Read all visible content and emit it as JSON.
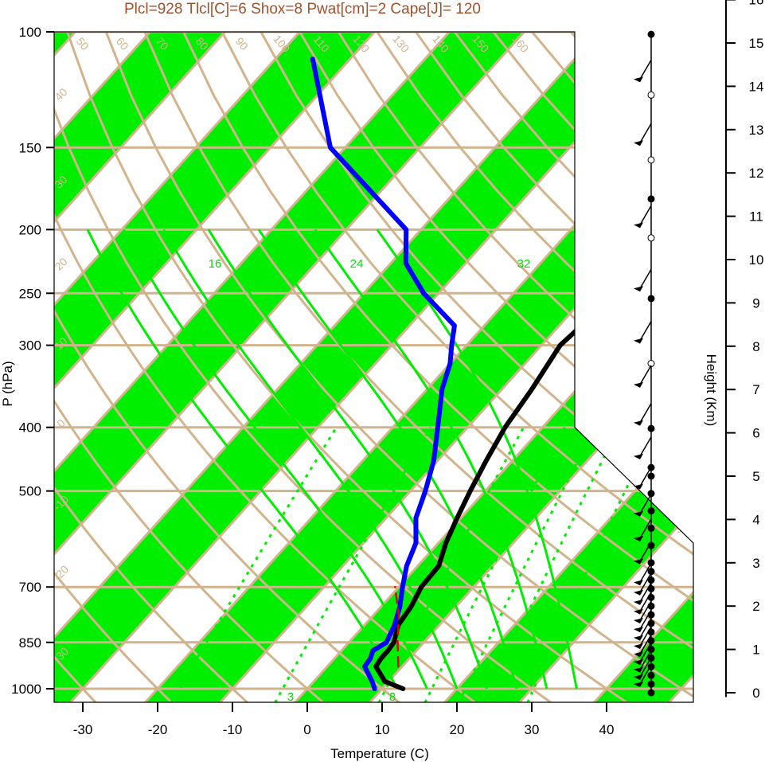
{
  "chart_data": {
    "type": "skew-t",
    "title": "Plcl=928 Tlcl[C]=6 Shox=8 Pwat[cm]=2 Cape[J]= 120",
    "xlabel": "Temperature (C)",
    "ylabel": "P (hPa)",
    "y2label": "Height (Km)",
    "xlim": [
      -34,
      52
    ],
    "ylim": [
      1050,
      100
    ],
    "x_ticks": [
      "-30",
      "-20",
      "-10",
      "0",
      "10",
      "20",
      "30",
      "40"
    ],
    "p_ticks": [
      "100",
      "150",
      "200",
      "250",
      "300",
      "400",
      "500",
      "700",
      "850",
      "1000"
    ],
    "height_ticks": [
      "0",
      "1",
      "2",
      "3",
      "4",
      "5",
      "6",
      "7",
      "8",
      "9",
      "10",
      "11",
      "12",
      "13",
      "14",
      "15",
      "16"
    ],
    "dry_adiabat_labels": [
      "50",
      "60",
      "70",
      "80",
      "90",
      "100",
      "110",
      "120",
      "130",
      "140",
      "150",
      "160"
    ],
    "mixing_ratio_labels": [
      "12",
      "16",
      "24",
      "32",
      "3",
      "8"
    ],
    "band_labels": [
      "40",
      "30",
      "20",
      "10",
      "0",
      "-10",
      "-20",
      "-30",
      "30",
      "20",
      "10",
      "0",
      "10",
      "20",
      "30"
    ],
    "colors": {
      "temperature": "#000000",
      "dewpoint": "#0000ff",
      "parcel": "#dd0000",
      "bands": "#00ee00",
      "isotherms": "#d2b48c",
      "title": "#a0522d"
    },
    "series": [
      {
        "name": "",
        "kind": "temperature",
        "points": [
          [
            1000,
            12.8
          ],
          [
            975,
            9.5
          ],
          [
            925,
            6.5
          ],
          [
            900,
            6.2
          ],
          [
            875,
            6.2
          ],
          [
            850,
            6.0
          ],
          [
            800,
            4.5
          ],
          [
            750,
            4.0
          ],
          [
            700,
            3.0
          ],
          [
            650,
            2.8
          ],
          [
            600,
            1.0
          ],
          [
            550,
            -0.5
          ],
          [
            500,
            -2.0
          ],
          [
            450,
            -3.5
          ],
          [
            400,
            -5.0
          ],
          [
            350,
            -6.0
          ],
          [
            300,
            -7.5
          ],
          [
            280,
            -7.0
          ],
          [
            250,
            -4.0
          ],
          [
            200,
            0.0
          ],
          [
            150,
            4.5
          ],
          [
            120,
            8.0
          ],
          [
            110,
            9.5
          ]
        ]
      },
      {
        "name": "",
        "kind": "dewpoint",
        "points": [
          [
            1000,
            9.0
          ],
          [
            975,
            7.8
          ],
          [
            925,
            5.0
          ],
          [
            900,
            4.8
          ],
          [
            875,
            4.2
          ],
          [
            850,
            5.0
          ],
          [
            800,
            4.0
          ],
          [
            750,
            2.5
          ],
          [
            700,
            0.5
          ],
          [
            650,
            -1.5
          ],
          [
            600,
            -3.0
          ],
          [
            550,
            -6.0
          ],
          [
            500,
            -8.0
          ],
          [
            450,
            -10.5
          ],
          [
            400,
            -14.0
          ],
          [
            350,
            -18.0
          ],
          [
            320,
            -20.0
          ],
          [
            300,
            -22.0
          ],
          [
            280,
            -24.0
          ],
          [
            250,
            -32.0
          ],
          [
            225,
            -38.0
          ],
          [
            200,
            -42.0
          ],
          [
            150,
            -62.0
          ],
          [
            110,
            -75.0
          ]
        ]
      },
      {
        "name": "",
        "kind": "parcel",
        "points": [
          [
            925,
            9.5
          ],
          [
            850,
            6.5
          ],
          [
            775,
            3.5
          ],
          [
            700,
            -0.5
          ]
        ]
      }
    ],
    "wind_levels_hPa": [
      1000,
      975,
      950,
      925,
      900,
      875,
      850,
      825,
      800,
      775,
      750,
      725,
      700,
      650,
      600,
      550,
      500,
      450,
      400,
      350,
      300,
      250,
      200,
      150,
      120
    ],
    "height_dots_km": [
      0,
      0.2,
      0.4,
      0.6,
      0.8,
      1,
      1.2,
      1.4,
      1.6,
      1.8,
      2,
      2.2,
      2.4,
      2.6,
      2.8,
      3,
      3.4,
      3.8,
      4.2,
      4.6,
      5,
      5.2,
      6.1,
      7.6,
      9.1,
      10.5,
      11.4,
      12.3,
      13.8,
      15.2
    ]
  }
}
